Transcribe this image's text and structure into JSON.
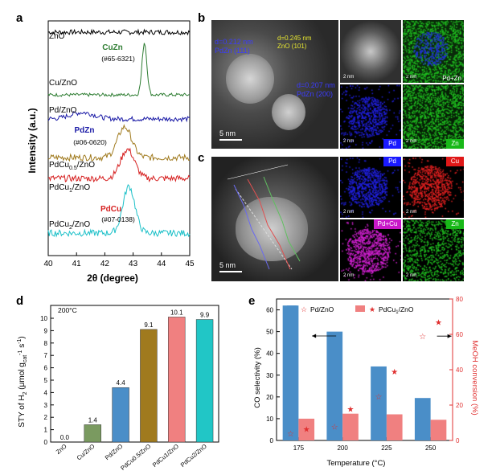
{
  "panel_letters": {
    "a": "a",
    "b": "b",
    "c": "c",
    "d": "d",
    "e": "e"
  },
  "chart_data": [
    {
      "type": "line",
      "panel": "a",
      "xlabel": "2θ (degree)",
      "ylabel": "Intensity (a.u.)",
      "xlim": [
        40,
        45
      ],
      "xticks": [
        "40",
        "41",
        "42",
        "43",
        "44",
        "45"
      ],
      "series": [
        {
          "name": "ZnO",
          "color": "#000000",
          "peak": null,
          "offset": 0
        },
        {
          "name": "Cu/ZnO",
          "color": "#2e7d32",
          "peak": 43.4,
          "offset": 1
        },
        {
          "name": "Pd/ZnO",
          "color": "#1a1aa6",
          "peak": null,
          "offset": 2
        },
        {
          "name": "PdCu0.5/ZnO",
          "color": "#a07a1e",
          "peak": 42.7,
          "offset": 3
        },
        {
          "name": "PdCu1/ZnO",
          "color": "#d62020",
          "peak": 42.8,
          "offset": 4
        },
        {
          "name": "PdCu2/ZnO",
          "color": "#1cc0c8",
          "peak": 42.85,
          "offset": 5
        }
      ],
      "labels": {
        "zno": "ZnO",
        "cu_zno": "Cu/ZnO",
        "pd_zno": "Pd/ZnO",
        "pdcu05_base": "PdCu",
        "pdcu05_sub": "0.5",
        "pdcu1_base": "PdCu",
        "pdcu1_sub": "1",
        "pdcu2_base": "PdCu",
        "pdcu2_sub": "2",
        "zno_suffix": "/ZnO"
      },
      "annotations": {
        "cuzn": "CuZn",
        "cuzn_ref": "(#65-6321)",
        "pdzn": "PdZn",
        "pdzn_ref": "(#06-0620)",
        "pdcu": "PdCu",
        "pdcu_ref": "(#07-0138)"
      }
    },
    {
      "type": "bar",
      "panel": "d",
      "condition": "200°C",
      "ylabel_base": "STY of H",
      "ylabel_units": "(μmol g",
      "ylabel_cat": "cat",
      "ylabel_tail": "s",
      "ylim": [
        0,
        10
      ],
      "yticks": [
        "0",
        "1",
        "2",
        "3",
        "4",
        "5",
        "6",
        "7",
        "8",
        "9",
        "10"
      ],
      "categories": [
        "ZnO",
        "Cu/ZnO",
        "Pd/ZnO",
        "PdCu0.5/ZnO",
        "PdCu1/ZnO",
        "PdCu2/ZnO"
      ],
      "values": [
        0.0,
        1.4,
        4.4,
        9.1,
        10.1,
        9.9
      ],
      "value_labels": [
        "0.0",
        "1.4",
        "4.4",
        "9.1",
        "10.1",
        "9.9"
      ],
      "colors": [
        "#808080",
        "#7a9a60",
        "#4a8ec8",
        "#a07a1e",
        "#f08080",
        "#21c6c6"
      ]
    },
    {
      "type": "bar",
      "panel": "e",
      "xlabel": "Temperature (°C)",
      "ylabel_left": "CO selectivity (%)",
      "ylabel_right": "MeOH conversion (%)",
      "categories": [
        "175",
        "200",
        "225",
        "250"
      ],
      "ylim_left": [
        0,
        65
      ],
      "yticks_left": [
        "0",
        "10",
        "20",
        "30",
        "40",
        "50",
        "60"
      ],
      "ylim_right": [
        0,
        80
      ],
      "yticks_right": [
        "0",
        "20",
        "40",
        "60",
        "80"
      ],
      "series": [
        {
          "name": "Pd/ZnO",
          "values": [
            62,
            50,
            34,
            19.5
          ],
          "color": "#4a8ec8",
          "conversion": [
            4,
            8,
            25,
            59
          ],
          "marker": "open-star"
        },
        {
          "name": "PdCu1/ZnO",
          "values": [
            10,
            12.3,
            12,
            9.5
          ],
          "color": "#f08080",
          "conversion": [
            6.5,
            18,
            39,
            67
          ],
          "marker": "filled-star"
        }
      ],
      "legend_pd": "Pd/ZnO",
      "legend_pdcu_base": "PdCu",
      "legend_pdcu_sub": "1",
      "legend_pdcu_tail": "/ZnO"
    }
  ],
  "panel_b": {
    "d1": "d=0.212 nm",
    "d1_phase": "PdZn (111)",
    "d2": "d=0.245 nm",
    "d2_phase": "ZnO (101)",
    "d3": "d=0.207 nm",
    "d3_phase": "PdZn (200)",
    "scale_main": "5 nm",
    "scale_small": "2 nm",
    "map_pd": "Pd",
    "map_zn": "Zn",
    "map_pdzn": "Pd+Zn"
  },
  "panel_c": {
    "scale_main": "5 nm",
    "scale_small": "2 nm",
    "map_pd": "Pd",
    "map_cu": "Cu",
    "map_pdcu": "Pd+Cu",
    "map_zn": "Zn"
  },
  "colors": {
    "pd_map": "#2020e0",
    "cu_map": "#e02020",
    "zn_map": "#20c020",
    "pdcu_map": "#d020d0",
    "label_pd_bg": "#1a1aff",
    "label_cu_bg": "#e01818",
    "label_zn_bg": "#18b818",
    "label_pdcu_bg": "#c818c8"
  }
}
